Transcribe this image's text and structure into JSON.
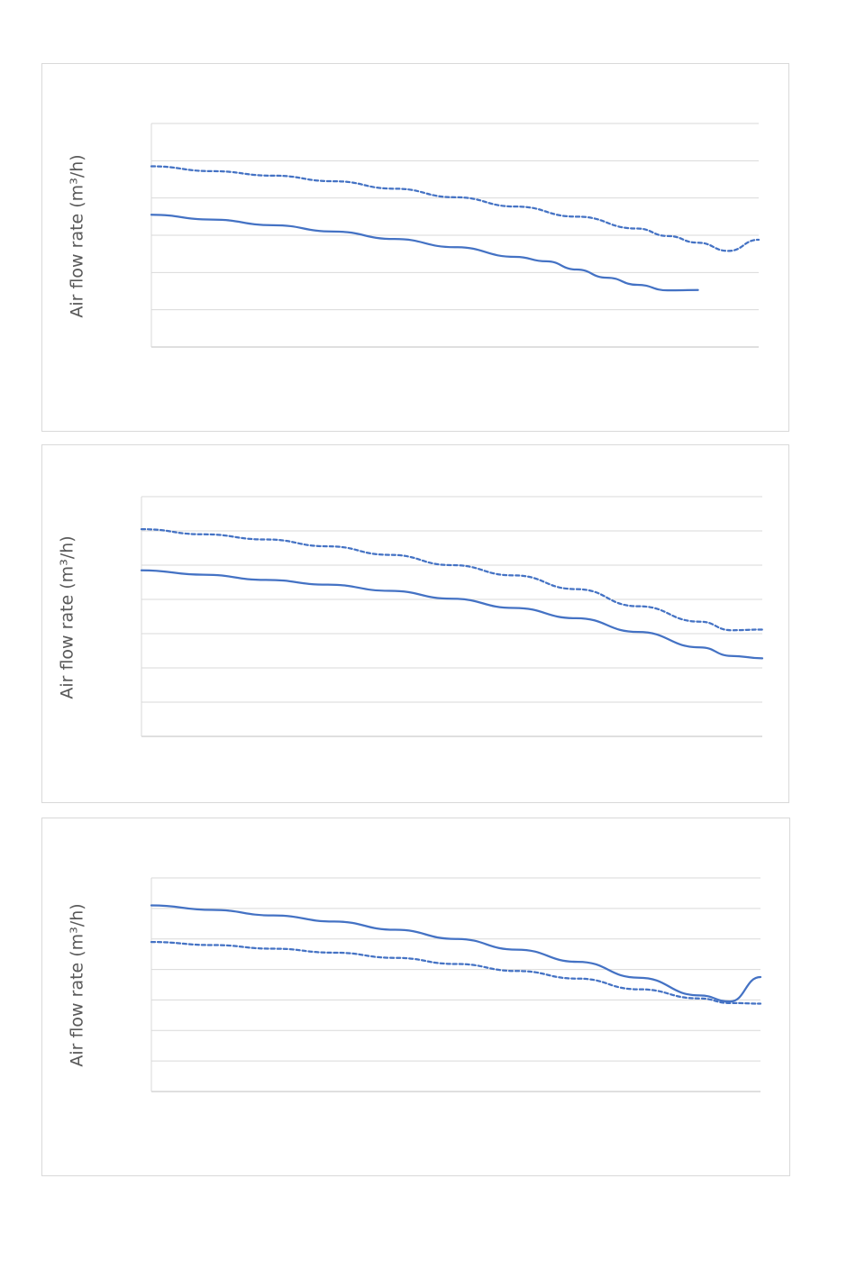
{
  "chart_data": [
    {
      "type": "line",
      "ylabel": "Air flow rate (m³/h)",
      "xlabel": "",
      "title": "",
      "ylim": [
        0,
        6
      ],
      "xlim": [
        0,
        100
      ],
      "grid": true,
      "series": [
        {
          "style": "dashed",
          "color": "#4472c4",
          "x": [
            0,
            10,
            20,
            30,
            40,
            50,
            60,
            70,
            80,
            85,
            90,
            95,
            100
          ],
          "y": [
            4.85,
            4.72,
            4.6,
            4.45,
            4.25,
            4.02,
            3.77,
            3.5,
            3.18,
            2.98,
            2.8,
            2.58,
            2.88
          ]
        },
        {
          "style": "solid",
          "color": "#4472c4",
          "x": [
            0,
            10,
            20,
            30,
            40,
            50,
            60,
            65,
            70,
            75,
            80,
            85,
            90
          ],
          "y": [
            3.55,
            3.42,
            3.27,
            3.1,
            2.9,
            2.68,
            2.42,
            2.3,
            2.08,
            1.86,
            1.67,
            1.52,
            1.53
          ]
        }
      ]
    },
    {
      "type": "line",
      "ylabel": "Air flow rate (m³/h)",
      "xlabel": "",
      "title": "",
      "ylim": [
        0,
        7
      ],
      "xlim": [
        0,
        100
      ],
      "grid": true,
      "series": [
        {
          "style": "dashed",
          "color": "#4472c4",
          "x": [
            0,
            10,
            20,
            30,
            40,
            50,
            60,
            70,
            80,
            90,
            95,
            100
          ],
          "y": [
            6.05,
            5.9,
            5.75,
            5.55,
            5.3,
            5.0,
            4.7,
            4.3,
            3.8,
            3.35,
            3.1,
            3.12
          ]
        },
        {
          "style": "solid",
          "color": "#4472c4",
          "x": [
            0,
            10,
            20,
            30,
            40,
            50,
            60,
            70,
            80,
            90,
            95,
            100
          ],
          "y": [
            4.85,
            4.72,
            4.57,
            4.43,
            4.25,
            4.02,
            3.75,
            3.45,
            3.05,
            2.6,
            2.35,
            2.28
          ]
        }
      ]
    },
    {
      "type": "line",
      "ylabel": "Air flow rate (m³/h)",
      "xlabel": "",
      "title": "",
      "ylim": [
        0,
        7
      ],
      "xlim": [
        0,
        100
      ],
      "grid": true,
      "series": [
        {
          "style": "solid",
          "color": "#4472c4",
          "x": [
            0,
            10,
            20,
            30,
            40,
            50,
            60,
            70,
            80,
            90,
            95,
            100
          ],
          "y": [
            6.1,
            5.95,
            5.77,
            5.57,
            5.3,
            5.0,
            4.65,
            4.25,
            3.73,
            3.15,
            2.95,
            3.75
          ]
        },
        {
          "style": "dashed",
          "color": "#4472c4",
          "x": [
            0,
            10,
            20,
            30,
            40,
            50,
            60,
            70,
            80,
            90,
            95,
            100
          ],
          "y": [
            4.9,
            4.8,
            4.68,
            4.55,
            4.38,
            4.18,
            3.95,
            3.7,
            3.35,
            3.05,
            2.9,
            2.88
          ]
        }
      ]
    }
  ]
}
